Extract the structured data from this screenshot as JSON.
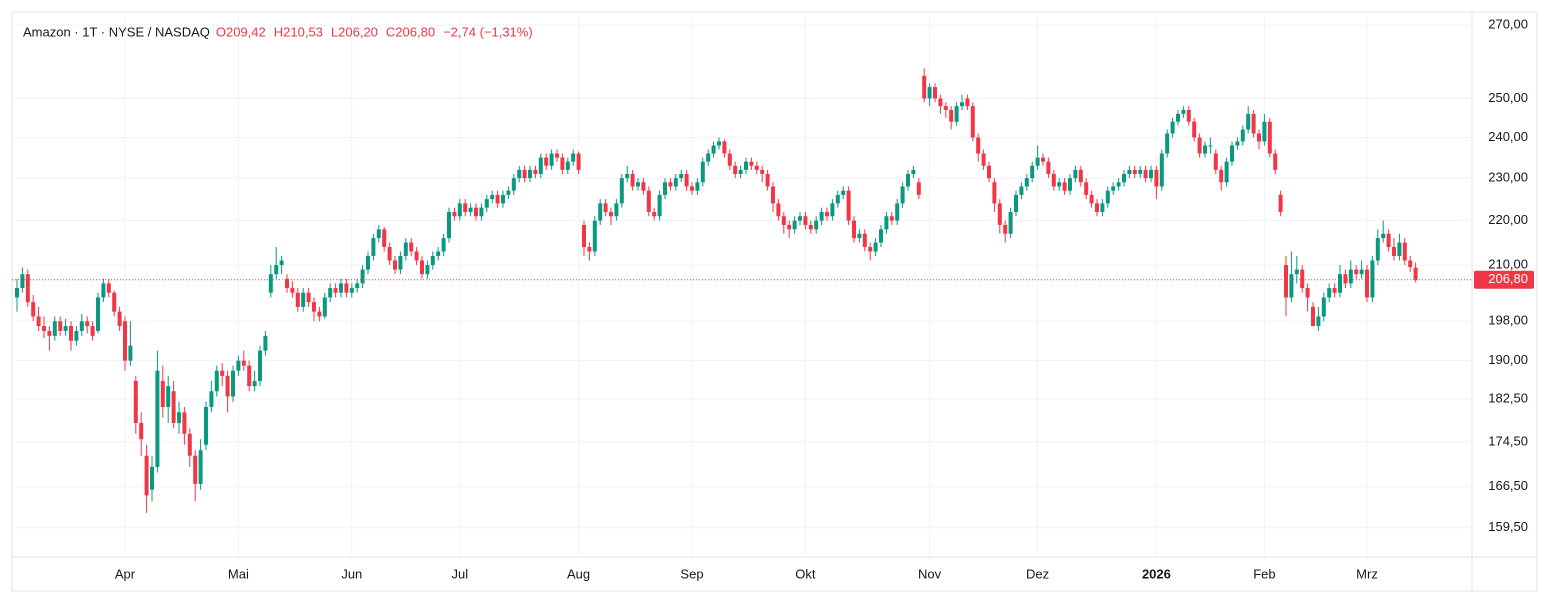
{
  "chart_data": {
    "type": "candlestick",
    "title": "Amazon · 1T · NYSE / NASDAQ",
    "header_values": [
      "O209,42",
      "H210,53",
      "L206,20",
      "C206,80",
      "−2,74 (−1,31%)"
    ],
    "up_color": "#089981",
    "down_color": "#f23645",
    "log_scale": true,
    "grid": true,
    "ylim": [
      154.7,
      273.4
    ],
    "yticks": [
      {
        "value": 159.5,
        "label": "159,50"
      },
      {
        "value": 166.5,
        "label": "166,50"
      },
      {
        "value": 174.5,
        "label": "174,50"
      },
      {
        "value": 182.5,
        "label": "182,50"
      },
      {
        "value": 190,
        "label": "190,00"
      },
      {
        "value": 198,
        "label": "198,00"
      },
      {
        "value": 210,
        "label": "210,00"
      },
      {
        "value": 220,
        "label": "220,00"
      },
      {
        "value": 230,
        "label": "230,00"
      },
      {
        "value": 240,
        "label": "240,00"
      },
      {
        "value": 250,
        "label": "250,00"
      },
      {
        "value": 270,
        "label": "270,00"
      }
    ],
    "xticks": [
      {
        "value": 20,
        "label": "Apr"
      },
      {
        "value": 41,
        "label": "Mai"
      },
      {
        "value": 62,
        "label": "Jun"
      },
      {
        "value": 82,
        "label": "Jul"
      },
      {
        "value": 104,
        "label": "Aug"
      },
      {
        "value": 125,
        "label": "Sep"
      },
      {
        "value": 146,
        "label": "Okt"
      },
      {
        "value": 169,
        "label": "Nov"
      },
      {
        "value": 189,
        "label": "Dez"
      },
      {
        "value": 211,
        "label": "2026"
      },
      {
        "value": 231,
        "label": "Feb"
      },
      {
        "value": 250,
        "label": "Mrz"
      }
    ],
    "last_price": {
      "value": 206.8,
      "label": "206,80"
    },
    "values": [
      [
        203,
        207,
        200,
        205
      ],
      [
        205,
        209.5,
        204,
        208
      ],
      [
        208,
        209,
        201,
        202
      ],
      [
        202,
        203.5,
        198,
        199
      ],
      [
        199,
        201,
        196,
        197
      ],
      [
        197,
        199,
        194.5,
        196
      ],
      [
        196,
        197,
        192,
        195
      ],
      [
        195,
        199,
        194,
        198
      ],
      [
        198,
        199,
        195,
        196
      ],
      [
        196,
        198.5,
        195,
        197
      ],
      [
        197,
        198,
        192,
        194
      ],
      [
        194,
        197,
        193,
        196
      ],
      [
        196,
        199.5,
        195,
        198
      ],
      [
        198,
        199,
        195.5,
        197
      ],
      [
        197,
        198,
        194,
        195
      ],
      [
        196,
        204,
        195.5,
        203
      ],
      [
        203,
        207,
        202,
        206
      ],
      [
        206,
        207,
        203,
        204
      ],
      [
        204,
        204.5,
        199,
        200
      ],
      [
        200,
        201,
        196,
        197
      ],
      [
        198,
        199,
        188,
        190
      ],
      [
        190,
        198,
        189,
        193
      ],
      [
        186,
        187,
        176,
        178
      ],
      [
        178,
        180,
        172,
        175
      ],
      [
        172,
        174,
        162,
        165
      ],
      [
        166,
        172,
        164,
        170
      ],
      [
        170,
        192,
        169,
        188
      ],
      [
        186,
        189,
        179,
        181
      ],
      [
        181,
        187,
        178,
        185
      ],
      [
        184,
        186,
        177,
        178
      ],
      [
        178,
        182,
        176,
        180
      ],
      [
        180,
        181,
        174,
        176
      ],
      [
        176,
        177,
        170,
        172
      ],
      [
        172,
        173,
        164,
        167
      ],
      [
        167,
        175,
        166,
        173
      ],
      [
        174,
        182,
        173,
        181
      ],
      [
        181,
        186,
        180,
        184
      ],
      [
        184,
        189,
        183,
        188
      ],
      [
        188,
        189.5,
        185,
        187
      ],
      [
        187,
        188,
        180,
        183
      ],
      [
        183,
        189,
        182,
        188
      ],
      [
        188,
        191,
        187,
        190
      ],
      [
        190,
        192,
        188,
        189
      ],
      [
        189,
        190,
        184,
        185
      ],
      [
        185,
        188,
        184,
        186
      ],
      [
        186,
        193,
        185,
        192
      ],
      [
        192,
        196,
        191,
        195
      ],
      [
        204,
        210,
        203,
        208
      ],
      [
        208,
        214,
        207,
        210
      ],
      [
        210,
        212,
        208,
        211
      ],
      [
        207,
        208,
        204,
        205
      ],
      [
        205,
        206.5,
        203,
        204
      ],
      [
        204,
        205,
        200,
        201
      ],
      [
        201,
        205,
        200,
        204
      ],
      [
        204,
        205,
        201,
        202
      ],
      [
        202,
        203,
        198,
        200
      ],
      [
        200,
        201,
        198,
        199
      ],
      [
        199,
        204,
        198.5,
        203
      ],
      [
        203,
        206,
        202,
        205
      ],
      [
        205,
        206,
        203,
        204
      ],
      [
        204,
        207,
        203,
        206
      ],
      [
        206,
        207,
        203,
        204
      ],
      [
        204,
        206,
        203,
        205
      ],
      [
        205,
        207,
        204,
        206
      ],
      [
        206,
        210,
        205,
        209
      ],
      [
        209,
        213,
        208,
        212
      ],
      [
        212,
        217,
        211,
        216
      ],
      [
        216,
        219,
        215,
        218
      ],
      [
        218,
        218.5,
        213,
        214
      ],
      [
        214,
        215,
        210,
        211
      ],
      [
        211,
        212,
        208,
        209
      ],
      [
        209,
        213,
        208,
        212
      ],
      [
        212,
        216,
        211,
        215
      ],
      [
        215,
        216,
        212,
        213
      ],
      [
        213,
        214,
        210,
        211
      ],
      [
        211,
        212,
        207,
        208
      ],
      [
        208,
        211,
        207,
        210
      ],
      [
        210,
        213,
        209,
        212
      ],
      [
        212,
        214,
        211,
        213
      ],
      [
        213,
        217,
        212,
        216
      ],
      [
        216,
        223,
        215,
        222
      ],
      [
        222,
        223,
        220,
        221
      ],
      [
        221,
        225,
        220,
        224
      ],
      [
        224,
        225,
        221,
        222
      ],
      [
        222,
        224,
        221,
        223
      ],
      [
        223,
        224,
        220,
        221
      ],
      [
        221,
        224,
        220,
        223
      ],
      [
        223,
        226,
        222,
        225
      ],
      [
        225,
        227,
        224,
        226
      ],
      [
        226,
        227,
        223,
        224
      ],
      [
        224,
        227,
        223,
        226
      ],
      [
        226,
        228,
        225,
        227
      ],
      [
        227,
        231,
        226,
        230
      ],
      [
        230,
        233,
        229,
        232
      ],
      [
        232,
        233,
        229,
        230
      ],
      [
        230,
        233,
        229,
        232
      ],
      [
        232,
        233,
        230,
        231
      ],
      [
        231,
        236,
        230,
        235
      ],
      [
        235,
        236,
        232,
        233
      ],
      [
        233,
        237,
        232,
        236
      ],
      [
        236,
        237,
        234,
        235
      ],
      [
        235,
        236,
        231,
        232
      ],
      [
        232,
        235,
        231,
        234
      ],
      [
        234,
        237,
        233,
        236
      ],
      [
        236,
        236.5,
        231,
        232
      ],
      [
        219,
        220,
        212,
        214
      ],
      [
        214,
        215,
        211,
        213
      ],
      [
        213,
        221,
        212,
        220
      ],
      [
        220,
        225,
        219,
        224
      ],
      [
        224,
        225,
        221,
        222
      ],
      [
        222,
        223,
        219,
        221
      ],
      [
        221,
        225,
        220,
        224
      ],
      [
        224,
        231,
        223,
        230
      ],
      [
        230,
        233,
        229,
        231
      ],
      [
        231,
        232,
        227,
        228
      ],
      [
        228,
        230,
        227,
        229
      ],
      [
        229,
        230,
        226,
        227
      ],
      [
        227,
        228,
        221,
        222
      ],
      [
        222,
        223,
        220,
        221
      ],
      [
        221,
        227,
        220,
        226
      ],
      [
        226,
        230,
        225,
        229
      ],
      [
        229,
        230,
        227,
        228
      ],
      [
        228,
        231,
        227,
        230
      ],
      [
        230,
        232,
        229,
        231
      ],
      [
        231,
        232,
        227,
        228
      ],
      [
        228,
        229,
        226,
        227
      ],
      [
        227,
        230,
        226,
        229
      ],
      [
        229,
        235,
        228,
        234
      ],
      [
        234,
        237,
        233,
        236
      ],
      [
        236,
        239,
        235,
        238
      ],
      [
        238,
        240,
        237,
        239
      ],
      [
        239,
        239.5,
        235,
        236
      ],
      [
        236,
        237,
        232,
        233
      ],
      [
        233,
        234,
        230,
        231
      ],
      [
        231,
        233,
        230,
        232
      ],
      [
        232,
        235,
        231,
        234
      ],
      [
        234,
        235,
        232,
        233
      ],
      [
        233,
        234,
        231,
        232
      ],
      [
        232,
        233,
        229,
        231
      ],
      [
        231,
        232,
        227,
        228
      ],
      [
        228,
        229,
        222,
        224
      ],
      [
        224,
        225,
        220,
        221
      ],
      [
        221,
        222,
        217,
        219
      ],
      [
        219,
        220,
        216,
        218
      ],
      [
        218,
        221,
        217,
        220
      ],
      [
        220,
        222,
        219,
        221
      ],
      [
        221,
        222,
        218,
        219
      ],
      [
        219,
        220,
        217,
        218
      ],
      [
        218,
        221,
        217,
        220
      ],
      [
        220,
        223,
        219,
        222
      ],
      [
        222,
        223,
        220,
        221
      ],
      [
        221,
        225,
        220,
        224
      ],
      [
        224,
        227,
        223,
        226
      ],
      [
        226,
        228,
        225,
        227
      ],
      [
        227,
        228,
        219,
        220
      ],
      [
        220,
        221,
        215,
        216
      ],
      [
        216,
        218,
        215,
        217
      ],
      [
        217,
        218,
        213,
        214
      ],
      [
        214,
        215,
        211,
        213
      ],
      [
        213,
        216,
        212,
        215
      ],
      [
        215,
        219,
        214,
        218
      ],
      [
        218,
        222,
        217,
        221
      ],
      [
        221,
        222,
        219,
        220
      ],
      [
        220,
        225,
        219,
        224
      ],
      [
        224,
        229,
        223,
        228
      ],
      [
        228,
        232,
        227,
        231
      ],
      [
        231,
        233,
        230,
        232
      ],
      [
        229,
        230,
        225,
        226
      ],
      [
        256,
        258,
        249,
        250
      ],
      [
        250,
        254,
        248,
        253
      ],
      [
        253,
        254,
        249,
        250
      ],
      [
        250,
        251,
        246,
        248
      ],
      [
        248,
        249,
        245,
        247
      ],
      [
        247,
        248,
        242,
        244
      ],
      [
        244,
        249,
        243,
        248
      ],
      [
        248,
        251,
        247,
        249
      ],
      [
        250,
        251,
        247,
        248
      ],
      [
        248,
        249,
        239,
        240
      ],
      [
        240,
        241,
        234,
        236
      ],
      [
        236,
        237,
        232,
        233
      ],
      [
        233,
        234,
        229,
        230
      ],
      [
        229,
        230,
        222,
        224
      ],
      [
        224,
        225,
        217,
        219
      ],
      [
        219,
        220,
        215,
        217
      ],
      [
        217,
        223,
        216,
        222
      ],
      [
        222,
        227,
        221,
        226
      ],
      [
        226,
        229,
        225,
        228
      ],
      [
        228,
        231,
        227,
        230
      ],
      [
        230,
        234,
        229,
        233
      ],
      [
        233,
        238,
        232,
        235
      ],
      [
        235,
        236,
        233,
        234
      ],
      [
        234,
        235,
        230,
        231
      ],
      [
        231,
        232,
        227,
        228
      ],
      [
        228,
        230,
        227,
        229
      ],
      [
        229,
        230,
        226,
        227
      ],
      [
        227,
        231,
        226,
        230
      ],
      [
        230,
        233,
        229,
        232
      ],
      [
        232,
        233,
        228,
        229
      ],
      [
        229,
        230,
        225,
        226
      ],
      [
        226,
        227,
        223,
        224
      ],
      [
        224,
        225,
        221,
        222
      ],
      [
        222,
        225,
        221,
        224
      ],
      [
        224,
        228,
        223,
        227
      ],
      [
        227,
        229,
        226,
        228
      ],
      [
        228,
        230,
        227,
        229
      ],
      [
        229,
        232,
        228,
        231
      ],
      [
        231,
        233,
        230,
        232
      ],
      [
        232,
        233,
        230,
        231
      ],
      [
        231,
        233,
        230,
        232
      ],
      [
        232,
        233,
        229,
        230
      ],
      [
        230,
        233,
        229,
        232
      ],
      [
        232,
        233,
        225,
        228
      ],
      [
        228,
        237,
        227,
        236
      ],
      [
        236,
        242,
        235,
        241
      ],
      [
        241,
        245,
        240,
        244
      ],
      [
        244,
        247,
        243,
        246
      ],
      [
        246,
        248,
        245,
        247
      ],
      [
        247,
        248,
        243,
        244
      ],
      [
        244,
        245,
        239,
        240
      ],
      [
        240,
        241,
        235,
        236
      ],
      [
        236,
        239,
        235,
        238
      ],
      [
        238,
        240,
        236,
        238
      ],
      [
        236,
        237,
        231,
        232
      ],
      [
        232,
        233,
        227,
        229
      ],
      [
        229,
        235,
        228,
        234
      ],
      [
        234,
        239,
        233,
        238
      ],
      [
        238,
        240,
        237,
        239
      ],
      [
        239,
        243,
        238,
        242
      ],
      [
        242,
        248,
        241,
        246
      ],
      [
        246,
        247,
        240,
        241
      ],
      [
        241,
        242,
        237,
        239
      ],
      [
        239,
        246,
        238,
        244
      ],
      [
        244,
        245,
        235,
        236
      ],
      [
        236,
        237,
        231,
        232
      ],
      [
        226,
        227,
        221,
        222
      ],
      [
        210,
        212,
        199,
        203
      ],
      [
        203,
        213,
        202,
        208
      ],
      [
        208,
        212,
        206,
        209
      ],
      [
        209,
        210,
        204,
        205
      ],
      [
        205,
        206,
        200,
        203
      ],
      [
        201,
        202,
        197,
        197
      ],
      [
        197,
        201,
        196,
        199
      ],
      [
        199,
        204,
        198,
        203
      ],
      [
        203,
        206,
        202,
        205
      ],
      [
        205,
        206,
        203,
        204
      ],
      [
        204,
        210,
        203,
        208
      ],
      [
        208,
        209,
        205,
        206
      ],
      [
        206,
        211,
        205,
        209
      ],
      [
        209,
        210,
        207,
        208
      ],
      [
        208,
        211,
        207,
        209
      ],
      [
        209,
        210,
        202,
        203
      ],
      [
        203,
        212,
        202,
        211
      ],
      [
        211,
        218,
        210,
        216
      ],
      [
        216,
        220,
        215,
        217
      ],
      [
        217,
        218,
        213,
        214
      ],
      [
        214,
        216,
        211,
        212
      ],
      [
        212,
        217,
        211,
        215
      ],
      [
        215,
        216,
        210,
        211
      ],
      [
        211,
        212,
        208.5,
        209.54
      ],
      [
        209.42,
        210.53,
        206.2,
        206.8
      ]
    ]
  }
}
